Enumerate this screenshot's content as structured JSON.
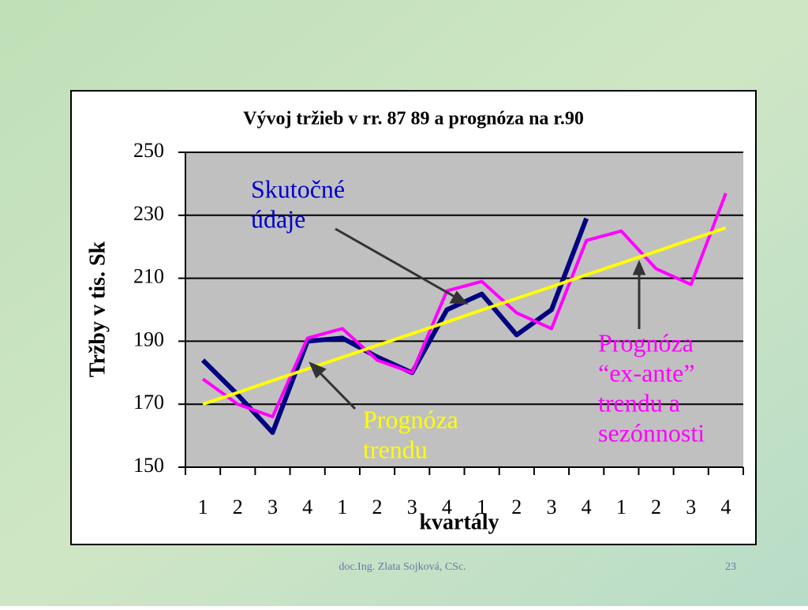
{
  "chart_data": {
    "type": "line",
    "title": "Vývoj tržieb v rr. 87 89 a prognóza na r.90",
    "ylabel": "Tržby v tis. Sk",
    "xlabel": "kvartály",
    "categories": [
      "1",
      "2",
      "3",
      "4",
      "1",
      "2",
      "3",
      "4",
      "1",
      "2",
      "3",
      "4",
      "1",
      "2",
      "3",
      "4"
    ],
    "ylim": [
      150,
      250
    ],
    "yticks": [
      150,
      170,
      190,
      210,
      230,
      250
    ],
    "grid": true,
    "series": [
      {
        "name": "Skutočné údaje",
        "color": "#000080",
        "width": 6,
        "values": [
          184,
          173,
          161,
          190,
          191,
          185,
          180,
          200,
          205,
          192,
          200,
          229,
          null,
          null,
          null,
          null
        ]
      },
      {
        "name": "Prognóza “ex-ante” trendu a sezónnosti",
        "color": "#ff00ff",
        "width": 4,
        "values": [
          178,
          170,
          166,
          191,
          194,
          184,
          180,
          206,
          209,
          199,
          194,
          222,
          225,
          213,
          208,
          237
        ]
      },
      {
        "name": "Prognóza trendu",
        "color": "#ffff00",
        "width": 4,
        "values": [
          170,
          173.7,
          177.5,
          181.2,
          184.9,
          188.7,
          192.4,
          196.1,
          199.9,
          203.6,
          207.3,
          211.1,
          214.8,
          218.5,
          222.3,
          226
        ]
      }
    ],
    "annotations": [
      {
        "lines": [
          "Skutočné",
          "údaje"
        ],
        "color": "#0000cc"
      },
      {
        "lines": [
          "Prognóza",
          "trendu"
        ],
        "color": "#ffff00"
      },
      {
        "lines": [
          "Prognóza",
          "“ex-ante”",
          "trendu a",
          "sezónnosti"
        ],
        "color": "#ff00ff"
      }
    ]
  },
  "footer": {
    "author": "doc.Ing. Zlata Sojková, CSc.",
    "page": "23"
  }
}
